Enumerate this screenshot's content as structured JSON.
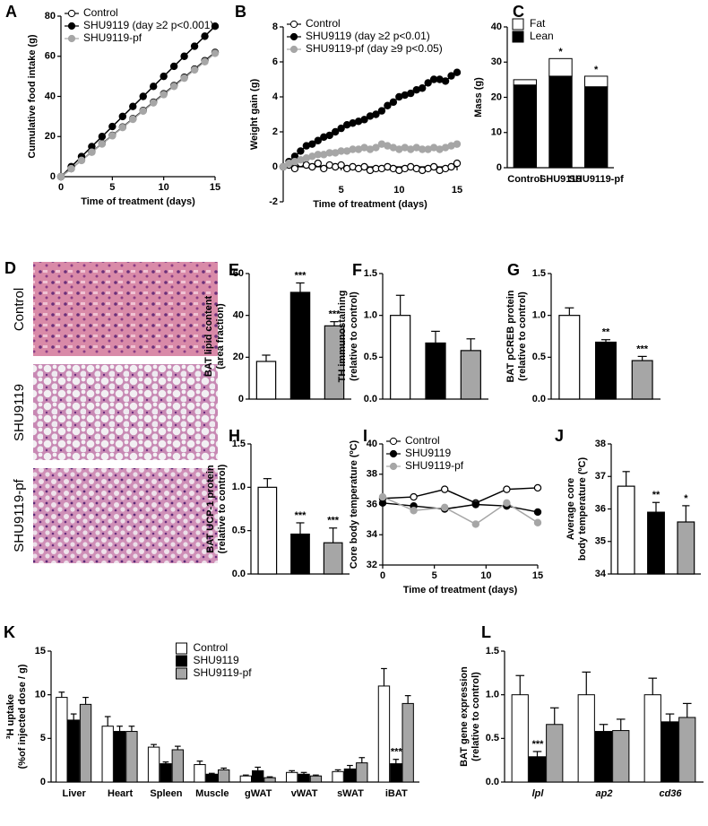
{
  "histology": {
    "panel": "D",
    "labels": [
      "Control",
      "SHU9119",
      "SHU9119-pf"
    ]
  },
  "chart_data": [
    {
      "type": "line",
      "panel": "A",
      "xlabel": "Time of treatment (days)",
      "ylabel": "Cumulative food intake (g)",
      "xlim": [
        0,
        15
      ],
      "xticks": [
        0,
        5,
        10,
        15
      ],
      "ylim": [
        0,
        80
      ],
      "yticks": [
        0,
        20,
        40,
        60,
        80
      ],
      "legend": "upper left",
      "x": [
        0,
        1,
        2,
        3,
        4,
        5,
        6,
        7,
        8,
        9,
        10,
        11,
        12,
        13,
        14,
        15
      ],
      "series": [
        {
          "name": "Control",
          "color": "#ffffff",
          "values": [
            0,
            4,
            8.2,
            12.3,
            16.5,
            20.6,
            24.7,
            28.9,
            33,
            37.1,
            41.3,
            45.4,
            49.5,
            53.6,
            57.8,
            61.9
          ]
        },
        {
          "name": "SHU9119 (day ≥2 p<0.001)",
          "color": "#000000",
          "values": [
            0,
            5,
            10,
            15,
            20,
            25,
            30,
            35,
            40,
            45,
            50,
            55,
            60,
            65,
            70,
            75
          ]
        },
        {
          "name": "SHU9119-pf",
          "color": "#a6a6a6",
          "values": [
            0,
            4,
            8.1,
            12.2,
            16.3,
            20.4,
            24.5,
            28.6,
            32.7,
            36.8,
            40.9,
            45,
            49.1,
            53.2,
            57.3,
            61.5
          ]
        }
      ]
    },
    {
      "type": "line",
      "panel": "B",
      "xlabel": "Time of treatment (days)",
      "ylabel": "Weight gain (g)",
      "xlim": [
        0,
        15
      ],
      "xticks": [
        5,
        10,
        15
      ],
      "ylim": [
        -2,
        8
      ],
      "yticks": [
        -2,
        0,
        2,
        4,
        6,
        8
      ],
      "legend": "upper left",
      "x": [
        0,
        0.5,
        1,
        1.5,
        2,
        2.5,
        3,
        3.5,
        4,
        4.5,
        5,
        5.5,
        6,
        6.5,
        7,
        7.5,
        8,
        8.5,
        9,
        9.5,
        10,
        10.5,
        11,
        11.5,
        12,
        12.5,
        13,
        13.5,
        14,
        14.5,
        15
      ],
      "series": [
        {
          "name": "Control",
          "color": "#ffffff",
          "values": [
            0,
            0.1,
            -0.1,
            0.2,
            0.1,
            0,
            0.2,
            -0.1,
            0.1,
            0,
            0.1,
            -0.1,
            0,
            -0.1,
            0,
            -0.2,
            -0.1,
            -0.1,
            0,
            -0.1,
            -0.2,
            -0.1,
            0,
            -0.1,
            -0.2,
            -0.1,
            0,
            -0.2,
            -0.1,
            0,
            0.2
          ]
        },
        {
          "name": "SHU9119 (day ≥2 p<0.01)",
          "color": "#000000",
          "values": [
            0,
            0.3,
            0.6,
            0.9,
            1.2,
            1.3,
            1.5,
            1.7,
            1.8,
            2,
            2.2,
            2.4,
            2.5,
            2.6,
            2.7,
            2.9,
            3,
            3.2,
            3.5,
            3.7,
            4,
            4.1,
            4.2,
            4.4,
            4.5,
            4.8,
            5,
            5,
            4.9,
            5.2,
            5.4
          ]
        },
        {
          "name": "SHU9119-pf (day ≥9 p<0.05)",
          "color": "#a6a6a6",
          "values": [
            0,
            0.2,
            0.3,
            0.4,
            0.5,
            0.6,
            0.7,
            0.7,
            0.8,
            0.8,
            0.9,
            0.9,
            1,
            1,
            1.1,
            1,
            1.1,
            1.3,
            1.2,
            1.1,
            1,
            1.1,
            1,
            1.1,
            1,
            1,
            1.1,
            1,
            1.1,
            1.2,
            1.3
          ]
        }
      ]
    },
    {
      "type": "stacked_bar",
      "panel": "C",
      "ylabel": "Mass (g)",
      "ylim": [
        0,
        40
      ],
      "yticks": [
        0,
        10,
        20,
        30,
        40
      ],
      "legend": "upper left",
      "categories": [
        "Control",
        "SHU9119",
        "SHU9119-pf"
      ],
      "series": [
        {
          "name": "Lean",
          "color": "#000000",
          "values": [
            23.5,
            26,
            23
          ],
          "annotations": [
            null,
            "*",
            null
          ]
        },
        {
          "name": "Fat",
          "color": "#ffffff",
          "values": [
            1.5,
            5,
            3
          ],
          "annotations": [
            null,
            "*",
            "*"
          ]
        }
      ]
    },
    {
      "type": "bar",
      "panel": "E",
      "ylabel": [
        "BAT lipid content",
        "(area fraction)"
      ],
      "ylim": [
        0,
        60
      ],
      "yticks": [
        0,
        20,
        40,
        60
      ],
      "categories": [
        null,
        null,
        null
      ],
      "colors": [
        "#ffffff",
        "#000000",
        "#a6a6a6"
      ],
      "values": [
        18,
        51,
        35
      ],
      "errors": [
        3,
        4.5,
        2
      ],
      "annotations": [
        null,
        "***",
        "***"
      ]
    },
    {
      "type": "bar",
      "panel": "F",
      "ylabel": [
        "TH immunostaining",
        "(relative to control)"
      ],
      "ylim": [
        0,
        1.5
      ],
      "yticks": [
        {
          "value": 0,
          "label": "0.0"
        },
        {
          "value": 0.5,
          "label": "0.5"
        },
        {
          "value": 1,
          "label": "1.0"
        },
        {
          "value": 1.5,
          "label": "1.5"
        }
      ],
      "categories": [
        null,
        null,
        null
      ],
      "colors": [
        "#ffffff",
        "#000000",
        "#a6a6a6"
      ],
      "values": [
        1,
        0.67,
        0.58
      ],
      "errors": [
        0.24,
        0.14,
        0.14
      ]
    },
    {
      "type": "bar",
      "panel": "G",
      "ylabel": [
        "BAT pCREB protein",
        "(relative to control)"
      ],
      "ylim": [
        0,
        1.5
      ],
      "yticks": [
        {
          "value": 0,
          "label": "0.0"
        },
        {
          "value": 0.5,
          "label": "0.5"
        },
        {
          "value": 1,
          "label": "1.0"
        },
        {
          "value": 1.5,
          "label": "1.5"
        }
      ],
      "categories": [
        null,
        null,
        null
      ],
      "colors": [
        "#ffffff",
        "#000000",
        "#a6a6a6"
      ],
      "values": [
        1,
        0.68,
        0.46
      ],
      "errors": [
        0.09,
        0.03,
        0.05
      ],
      "annotations": [
        null,
        "**",
        "***"
      ]
    },
    {
      "type": "bar",
      "panel": "H",
      "ylabel": [
        "BAT UCP-1 protein",
        "(relative to control)"
      ],
      "ylim": [
        0,
        1.5
      ],
      "yticks": [
        {
          "value": 0,
          "label": "0.0"
        },
        {
          "value": 0.5,
          "label": "0.5"
        },
        {
          "value": 1,
          "label": "1.0"
        },
        {
          "value": 1.5,
          "label": "1.5"
        }
      ],
      "categories": [
        null,
        null,
        null
      ],
      "colors": [
        "#ffffff",
        "#000000",
        "#a6a6a6"
      ],
      "values": [
        1,
        0.46,
        0.36
      ],
      "errors": [
        0.1,
        0.13,
        0.17
      ],
      "annotations": [
        null,
        "***",
        "***"
      ]
    },
    {
      "type": "line",
      "panel": "I",
      "xlabel": "Time of treatment (days)",
      "ylabel": "Core body temperature (ºC)",
      "xlim": [
        0,
        15
      ],
      "xticks": [
        0,
        5,
        10,
        15
      ],
      "ylim": [
        32,
        40
      ],
      "yticks": [
        32,
        34,
        36,
        38,
        40
      ],
      "legend": "upper left",
      "x": [
        0,
        3,
        6,
        9,
        12,
        15
      ],
      "series": [
        {
          "name": "Control",
          "color": "#ffffff",
          "values": [
            36.4,
            36.5,
            37,
            36.1,
            37,
            37.1
          ]
        },
        {
          "name": "SHU9119",
          "color": "#000000",
          "values": [
            36.1,
            35.9,
            35.7,
            36,
            35.9,
            35.5
          ]
        },
        {
          "name": "SHU9119-pf",
          "color": "#a6a6a6",
          "values": [
            36.5,
            35.6,
            35.8,
            34.7,
            36.1,
            34.8
          ]
        }
      ]
    },
    {
      "type": "bar",
      "panel": "J",
      "ylabel": [
        "Average core",
        "body temperature (ºC)"
      ],
      "ylim": [
        34,
        38
      ],
      "yticks": [
        34,
        35,
        36,
        37,
        38
      ],
      "categories": [
        null,
        null,
        null
      ],
      "colors": [
        "#ffffff",
        "#000000",
        "#a6a6a6"
      ],
      "values": [
        36.7,
        35.9,
        35.6
      ],
      "errors": [
        0.45,
        0.3,
        0.5
      ],
      "annotations": [
        null,
        "**",
        "*"
      ]
    },
    {
      "type": "bar",
      "panel": "K",
      "ylabel": [
        "³H uptake",
        "(%of injected dose / g)"
      ],
      "ylim": [
        0,
        15
      ],
      "yticks": [
        0,
        5,
        10,
        15
      ],
      "legend": "upper center",
      "categories": [
        "Liver",
        "Heart",
        "Spleen",
        "Muscle",
        "gWAT",
        "vWAT",
        "sWAT",
        "iBAT"
      ],
      "series": [
        {
          "name": "Control",
          "color": "#ffffff",
          "values": [
            9.7,
            6.4,
            4,
            2,
            0.7,
            1.1,
            1.2,
            11
          ],
          "errors": [
            0.6,
            1.1,
            0.3,
            0.4,
            0.1,
            0.2,
            0.2,
            2
          ]
        },
        {
          "name": "SHU9119",
          "color": "#000000",
          "values": [
            7.1,
            5.8,
            2.1,
            0.9,
            1.3,
            0.9,
            1.5,
            2.1
          ],
          "errors": [
            0.7,
            0.6,
            0.2,
            0.1,
            0.4,
            0.2,
            0.4,
            0.5
          ],
          "annotations": [
            null,
            null,
            null,
            null,
            null,
            null,
            null,
            "***"
          ]
        },
        {
          "name": "SHU9119-pf",
          "color": "#a6a6a6",
          "values": [
            8.9,
            5.8,
            3.7,
            1.4,
            0.5,
            0.7,
            2.2,
            9
          ],
          "errors": [
            0.8,
            0.6,
            0.4,
            0.2,
            0.1,
            0.1,
            0.6,
            0.9
          ]
        }
      ]
    },
    {
      "type": "bar",
      "panel": "L",
      "ylabel": [
        "BAT gene expression",
        "(relative to control)"
      ],
      "ylim": [
        0,
        1.5
      ],
      "yticks": [
        {
          "value": 0,
          "label": "0.0"
        },
        {
          "value": 0.5,
          "label": "0.5"
        },
        {
          "value": 1,
          "label": "1.0"
        },
        {
          "value": 1.5,
          "label": "1.5"
        }
      ],
      "categories": [
        "lpl",
        "ap2",
        "cd36"
      ],
      "category_style": "italic",
      "series": [
        {
          "name": null,
          "color": "#ffffff",
          "values": [
            1,
            1,
            1
          ],
          "errors": [
            0.22,
            0.26,
            0.19
          ]
        },
        {
          "name": null,
          "color": "#000000",
          "values": [
            0.29,
            0.58,
            0.69
          ],
          "errors": [
            0.06,
            0.08,
            0.09
          ],
          "annotations": [
            "***",
            null,
            null
          ]
        },
        {
          "name": null,
          "color": "#a6a6a6",
          "values": [
            0.66,
            0.59,
            0.74
          ],
          "errors": [
            0.19,
            0.13,
            0.16
          ]
        }
      ]
    }
  ]
}
